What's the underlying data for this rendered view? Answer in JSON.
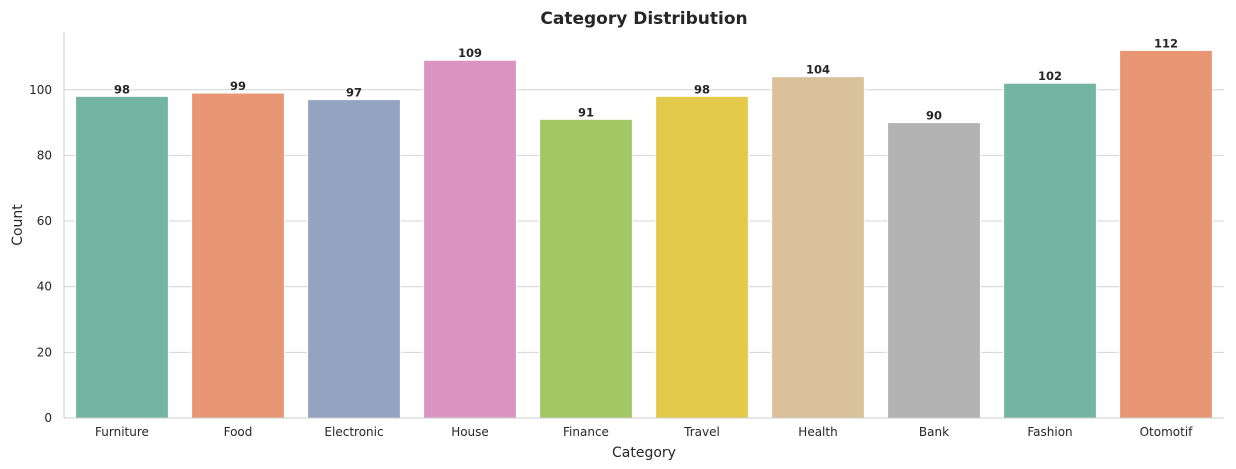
{
  "chart_data": {
    "type": "bar",
    "title": "Category Distribution",
    "xlabel": "Category",
    "ylabel": "Count",
    "categories": [
      "Furniture",
      "Food",
      "Electronic",
      "House",
      "Finance",
      "Travel",
      "Health",
      "Bank",
      "Fashion",
      "Otomotif"
    ],
    "values": [
      98,
      99,
      97,
      109,
      91,
      98,
      104,
      90,
      102,
      112
    ],
    "value_labels": [
      "98",
      "99",
      "97",
      "109",
      "91",
      "98",
      "104",
      "90",
      "102",
      "112"
    ],
    "colors": [
      "#73b5a0",
      "#e89673",
      "#94a3c2",
      "#db94bf",
      "#a2c866",
      "#e4ca4a",
      "#d9c19c",
      "#b3b3b3",
      "#73b5a0",
      "#e89673"
    ],
    "ylim": [
      0,
      117.6
    ],
    "yticks": [
      0,
      20,
      40,
      60,
      80,
      100
    ],
    "ytick_labels": [
      "0",
      "20",
      "40",
      "60",
      "80",
      "100"
    ],
    "grid": "horizontal",
    "legend": "none"
  }
}
